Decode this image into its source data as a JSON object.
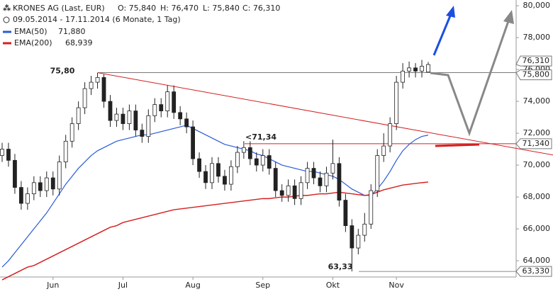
{
  "chart_data": {
    "type": "candlestick",
    "header": {
      "title": "KRONES AG (Last, EUR)",
      "open": "O: 75,840",
      "high": "H: 76,470",
      "low": "L: 75,840",
      "close": "C: 76,310",
      "range": "09.05.2014 - 17.11.2014 (6 Monate, 1 Tag)"
    },
    "categories": [
      null,
      null,
      null,
      null,
      null,
      null,
      null,
      null,
      "Jun",
      null,
      null,
      null,
      null,
      null,
      null,
      null,
      null,
      null,
      null,
      "Jul",
      null,
      null,
      null,
      null,
      null,
      null,
      null,
      null,
      null,
      null,
      "Aug",
      null,
      null,
      null,
      null,
      null,
      null,
      null,
      null,
      null,
      null,
      "Sep",
      null,
      null,
      null,
      null,
      null,
      null,
      null,
      null,
      null,
      null,
      "Okt",
      null,
      null,
      null,
      null,
      null,
      null,
      null,
      null,
      null,
      "Nov",
      null,
      null,
      null,
      null,
      null
    ],
    "open": [
      70.6,
      71.0,
      70.3,
      68.6,
      67.6,
      68.2,
      68.9,
      68.4,
      69.2,
      68.5,
      70.2,
      71.5,
      72.6,
      73.6,
      74.8,
      75.2,
      75.5,
      74.0,
      72.8,
      73.2,
      72.6,
      73.4,
      72.2,
      71.8,
      73.1,
      73.8,
      73.4,
      74.6,
      73.3,
      72.9,
      72.4,
      70.4,
      69.6,
      68.9,
      70.1,
      69.3,
      68.8,
      69.9,
      70.8,
      71.1,
      70.4,
      70.0,
      70.6,
      69.8,
      68.4,
      68.1,
      68.7,
      67.9,
      68.9,
      69.8,
      69.2,
      68.7,
      69.5,
      70.1,
      67.8,
      66.2,
      64.8,
      65.6,
      66.3,
      68.4,
      70.6,
      71.2,
      72.6,
      75.2,
      75.9,
      76.1,
      75.9,
      75.84
    ],
    "high": [
      71.4,
      71.4,
      70.7,
      69.0,
      68.6,
      69.3,
      69.3,
      69.6,
      69.6,
      70.6,
      71.9,
      73.0,
      74.0,
      75.2,
      75.6,
      75.8,
      75.7,
      74.4,
      73.6,
      73.6,
      73.8,
      73.8,
      72.6,
      73.5,
      74.2,
      74.2,
      75.0,
      75.0,
      73.7,
      73.3,
      72.8,
      70.8,
      70.0,
      70.5,
      70.5,
      69.7,
      70.3,
      71.2,
      71.5,
      71.5,
      70.8,
      71.0,
      71.0,
      70.2,
      68.8,
      69.1,
      69.1,
      69.3,
      70.2,
      70.2,
      69.6,
      69.9,
      71.6,
      70.5,
      68.2,
      66.6,
      66.0,
      67.0,
      68.8,
      71.0,
      72.0,
      73.0,
      75.6,
      76.4,
      76.5,
      76.4,
      76.6,
      76.47
    ],
    "low": [
      70.2,
      69.9,
      68.2,
      67.2,
      67.2,
      67.8,
      68.0,
      68.0,
      68.1,
      68.1,
      69.8,
      71.1,
      72.2,
      73.2,
      74.4,
      74.8,
      73.6,
      72.4,
      72.4,
      72.2,
      72.2,
      71.8,
      71.4,
      71.4,
      72.7,
      73.0,
      73.0,
      72.9,
      72.5,
      72.0,
      70.0,
      69.2,
      68.5,
      68.5,
      68.9,
      68.4,
      68.4,
      69.5,
      70.4,
      70.0,
      69.6,
      69.6,
      69.4,
      68.0,
      67.7,
      67.7,
      67.5,
      67.5,
      68.5,
      68.8,
      68.3,
      68.3,
      69.1,
      67.4,
      65.8,
      63.33,
      64.4,
      65.2,
      66.0,
      68.0,
      70.2,
      70.8,
      72.2,
      74.8,
      75.5,
      75.5,
      75.5,
      75.84
    ],
    "close": [
      71.0,
      70.3,
      68.6,
      67.6,
      68.2,
      68.9,
      68.4,
      69.2,
      68.5,
      70.2,
      71.5,
      72.6,
      73.6,
      74.8,
      75.2,
      75.5,
      74.0,
      72.8,
      73.2,
      72.6,
      73.4,
      72.2,
      71.8,
      73.1,
      73.8,
      73.4,
      74.6,
      73.3,
      72.9,
      72.4,
      70.4,
      69.6,
      68.9,
      70.1,
      69.3,
      68.8,
      69.9,
      70.8,
      71.1,
      70.4,
      70.0,
      70.6,
      69.8,
      68.4,
      68.1,
      68.7,
      67.9,
      68.9,
      69.8,
      69.2,
      68.7,
      69.5,
      70.1,
      67.8,
      66.2,
      64.8,
      65.6,
      66.3,
      68.4,
      70.6,
      71.2,
      72.6,
      75.2,
      75.9,
      76.1,
      75.9,
      76.2,
      76.31
    ],
    "series": [
      {
        "name": "EMA(50)",
        "color": "#2a5bd7",
        "last_label": "71,880",
        "values": [
          63.6,
          64.0,
          64.5,
          65.0,
          65.5,
          66.0,
          66.5,
          67.0,
          67.6,
          68.2,
          68.8,
          69.3,
          69.8,
          70.2,
          70.6,
          70.9,
          71.1,
          71.3,
          71.5,
          71.6,
          71.7,
          71.8,
          71.9,
          71.9,
          72.0,
          72.1,
          72.2,
          72.3,
          72.4,
          72.5,
          72.3,
          72.1,
          71.9,
          71.7,
          71.5,
          71.3,
          71.2,
          71.1,
          71.0,
          70.9,
          70.7,
          70.6,
          70.4,
          70.2,
          70.0,
          69.9,
          69.8,
          69.7,
          69.6,
          69.6,
          69.5,
          69.4,
          69.3,
          69.1,
          68.8,
          68.5,
          68.3,
          68.1,
          68.1,
          68.5,
          69.0,
          69.6,
          70.3,
          70.9,
          71.3,
          71.6,
          71.8,
          71.88
        ]
      },
      {
        "name": "EMA(200)",
        "color": "#d42020",
        "last_label": "68,939",
        "values": [
          62.8,
          63.0,
          63.2,
          63.4,
          63.6,
          63.7,
          63.9,
          64.1,
          64.3,
          64.5,
          64.7,
          64.9,
          65.1,
          65.3,
          65.5,
          65.7,
          65.9,
          66.1,
          66.2,
          66.4,
          66.5,
          66.6,
          66.7,
          66.8,
          66.9,
          67.0,
          67.1,
          67.2,
          67.25,
          67.3,
          67.35,
          67.4,
          67.45,
          67.5,
          67.55,
          67.6,
          67.65,
          67.7,
          67.75,
          67.8,
          67.85,
          67.9,
          67.9,
          67.95,
          68.0,
          68.0,
          68.05,
          68.1,
          68.1,
          68.15,
          68.2,
          68.2,
          68.25,
          68.3,
          68.25,
          68.2,
          68.15,
          68.1,
          68.15,
          68.3,
          68.45,
          68.55,
          68.65,
          68.75,
          68.8,
          68.85,
          68.9,
          68.939
        ]
      }
    ],
    "levels": [
      {
        "value": 75.8,
        "label": "75,80",
        "color": "#666666"
      },
      {
        "value": 71.34,
        "label": "<71,34",
        "color": "#d42020"
      },
      {
        "value": 63.33,
        "label": "63,33",
        "color": "#666666"
      }
    ],
    "price_markers": [
      {
        "value": 76.31,
        "label": "76,310"
      },
      {
        "value": 75.8,
        "label": "75,800"
      },
      {
        "value": 71.34,
        "label": "71,340"
      },
      {
        "value": 63.33,
        "label": "63,330"
      }
    ],
    "ylim": [
      62.98,
      80.36
    ],
    "yticks": [
      {
        "value": 64,
        "label": "64,000"
      },
      {
        "value": 66,
        "label": "66,000"
      },
      {
        "value": 68,
        "label": "68,000"
      },
      {
        "value": 70,
        "label": "70,000"
      },
      {
        "value": 72,
        "label": "72,000"
      },
      {
        "value": 74,
        "label": "74,000"
      },
      {
        "value": 76,
        "label": "76,000"
      },
      {
        "value": 78,
        "label": "78,000"
      },
      {
        "value": 80,
        "label": "80,000"
      }
    ]
  }
}
